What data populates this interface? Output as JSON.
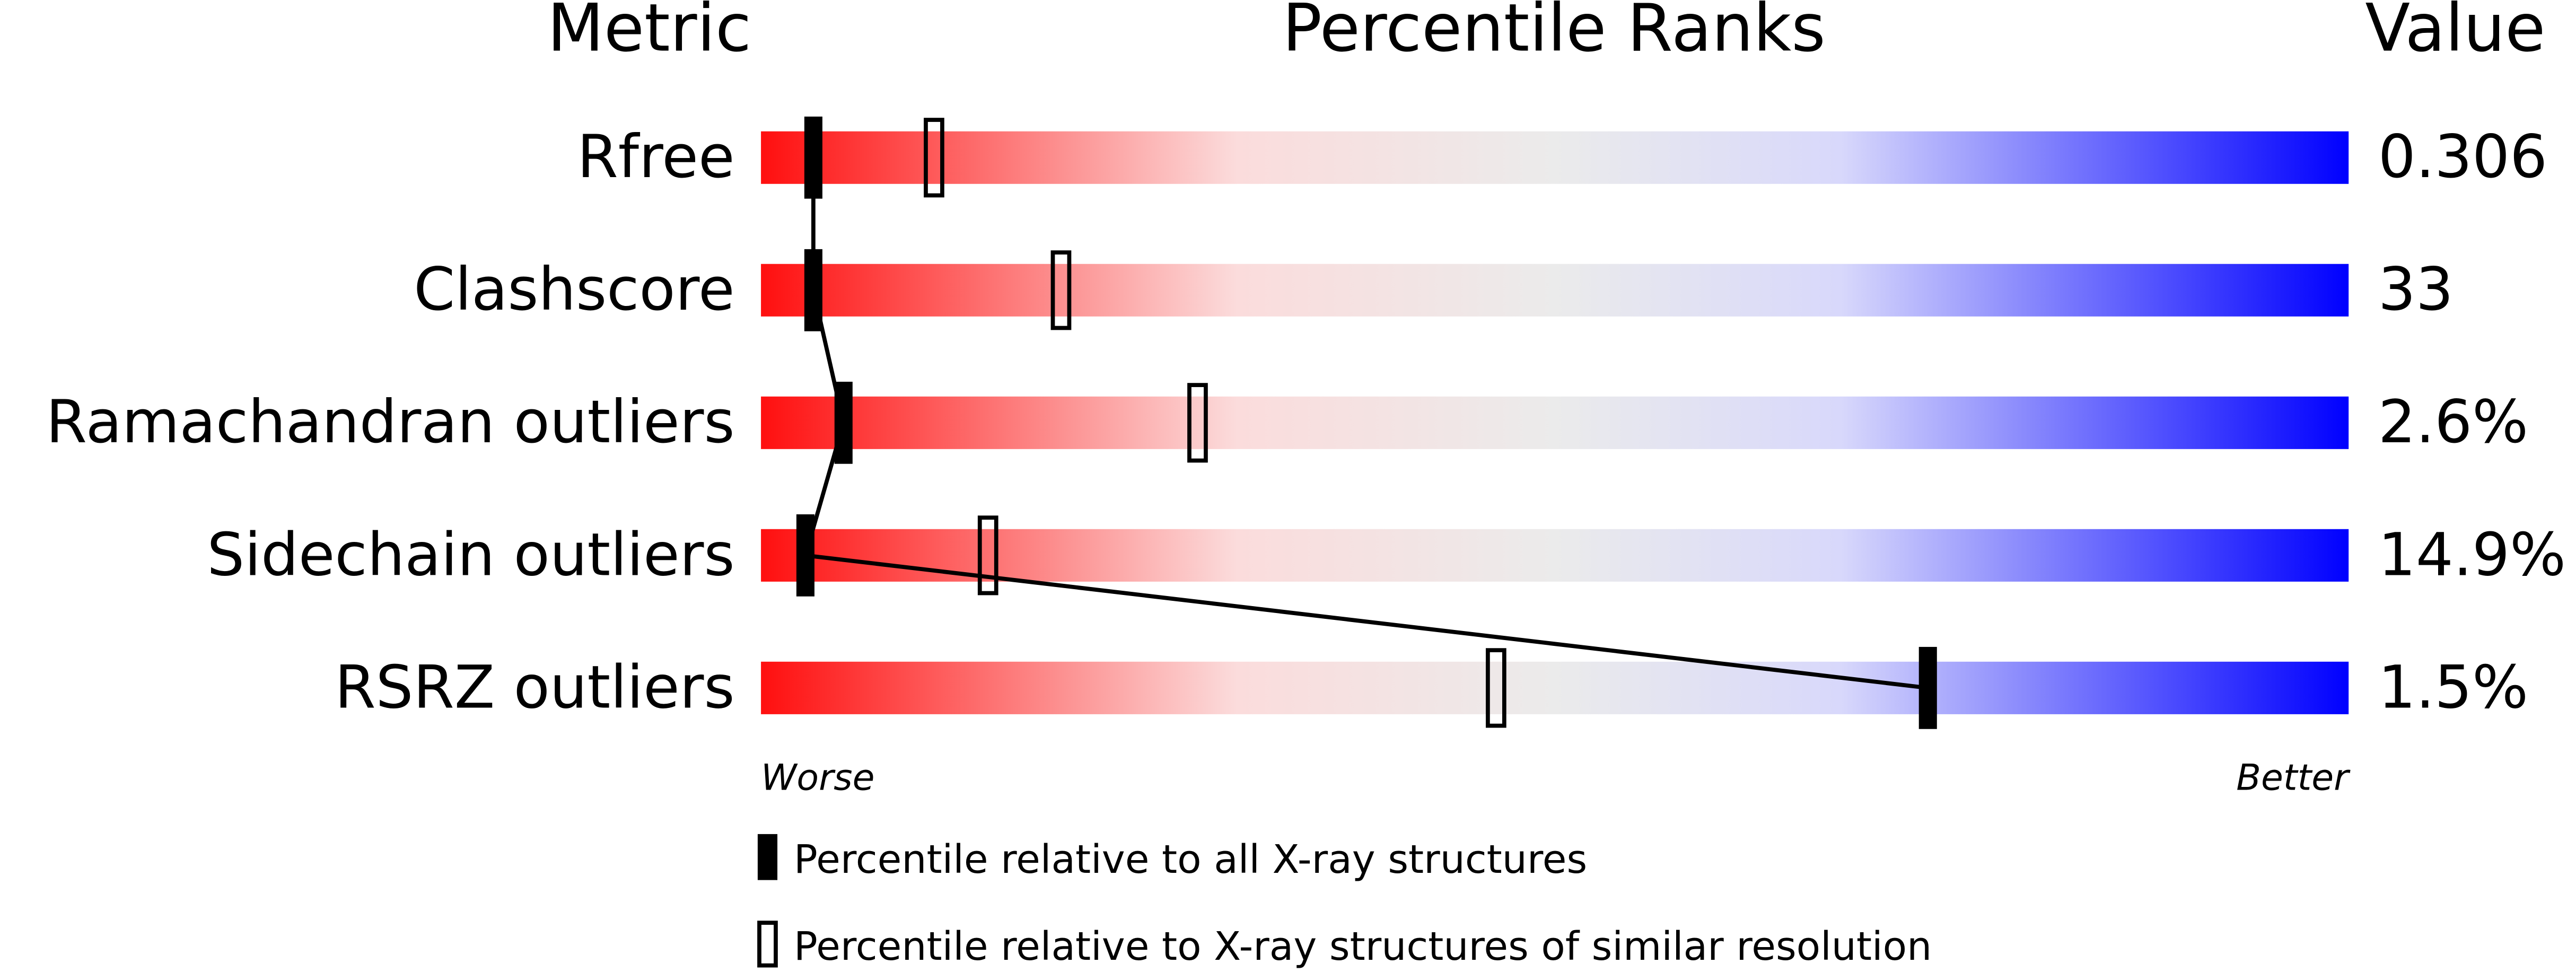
{
  "chart_data": {
    "type": "percentile",
    "headers": [
      "Metric",
      "Percentile Ranks",
      "Value"
    ],
    "categories": [
      "Rfree",
      "Clashscore",
      "Ramachandran outliers",
      "Sidechain outliers",
      "RSRZ outliers"
    ],
    "value_labels": [
      "0.306",
      "33",
      "2.6%",
      "14.9%",
      "1.5%"
    ],
    "xlim": [
      0,
      100
    ],
    "worse_label": "Worse",
    "better_label": "Better",
    "gradient": [
      "#ff0f0f",
      "#fbdcdc",
      "#ebebeb",
      "#d8d8fb",
      "#0000ff"
    ],
    "series": [
      {
        "name": "Percentile relative to all X-ray structures",
        "color": "#000000",
        "style": "filled",
        "values": [
          3.3,
          3.3,
          5.2,
          2.8,
          73.5
        ]
      },
      {
        "name": "Percentile relative to X-ray structures of similar resolution",
        "color": "#000000",
        "style": "hollow",
        "values": [
          10.9,
          18.9,
          27.5,
          14.3,
          46.3
        ]
      }
    ]
  }
}
